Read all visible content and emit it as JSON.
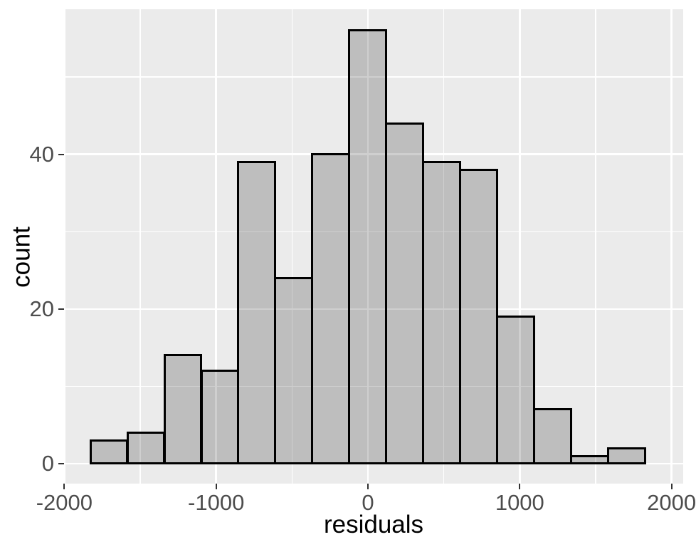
{
  "chart_data": {
    "type": "bar",
    "subtype": "histogram",
    "title": "",
    "xlabel": "residuals",
    "ylabel": "count",
    "xlim": [
      -2001.7,
      2076.7
    ],
    "ylim": [
      -2.58,
      58.75
    ],
    "x_major_ticks": [
      -2000,
      -1000,
      0,
      1000,
      2000
    ],
    "x_tick_labels": [
      "-2000",
      "-1000",
      "0",
      "1000",
      "2000"
    ],
    "x_minor_gridlines": [
      -1500,
      -500,
      500,
      1500
    ],
    "y_major_ticks": [
      0,
      20,
      40
    ],
    "y_tick_labels": [
      "0",
      "20",
      "40"
    ],
    "y_minor_gridlines": [
      10,
      30,
      50
    ],
    "grid": "on",
    "legend_position": "none",
    "bins": {
      "start": -1828.2,
      "width": 243.75,
      "counts": [
        3,
        4,
        14,
        12,
        39,
        24,
        40,
        56,
        44,
        39,
        38,
        19,
        7,
        1,
        2
      ]
    },
    "colors": {
      "figure_background": "#FFFFFF",
      "panel_background": "#EBEBEB",
      "gridline": "#FFFFFF",
      "bar_fill": "rgba(0,0,0,0.19)",
      "bar_border": "#000000",
      "axis_text": "#4D4D4D",
      "axis_title": "#000000",
      "tick_mark": "#333333"
    }
  }
}
